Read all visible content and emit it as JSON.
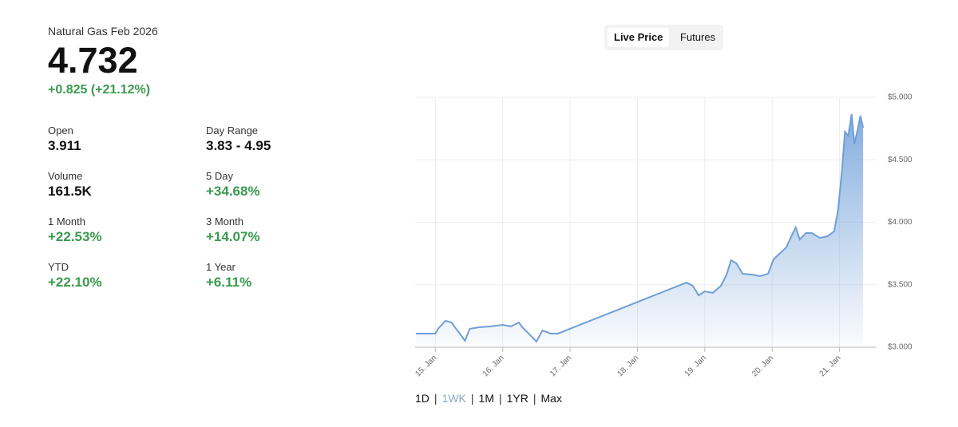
{
  "header": {
    "title": "Natural Gas Feb 2026",
    "price": "4.732",
    "change": "+0.825 (+21.12%)",
    "change_color": "#3a9a4f"
  },
  "stats": [
    {
      "label": "Open",
      "value": "3.911",
      "color": "#111111"
    },
    {
      "label": "Day Range",
      "value": "3.83 - 4.95",
      "color": "#111111"
    },
    {
      "label": "Volume",
      "value": "161.5K",
      "color": "#111111"
    },
    {
      "label": "5 Day",
      "value": "+34.68%",
      "color": "#3a9a4f"
    },
    {
      "label": "1 Month",
      "value": "+22.53%",
      "color": "#3a9a4f"
    },
    {
      "label": "3 Month",
      "value": "+14.07%",
      "color": "#3a9a4f"
    },
    {
      "label": "YTD",
      "value": "+22.10%",
      "color": "#3a9a4f"
    },
    {
      "label": "1 Year",
      "value": "+6.11%",
      "color": "#3a9a4f"
    }
  ],
  "tabs": {
    "items": [
      "Live Price",
      "Futures"
    ],
    "selected": 0
  },
  "ranges": {
    "items": [
      "1D",
      "1WK",
      "1M",
      "1YR",
      "Max"
    ],
    "selected": 1
  },
  "chart_data": {
    "type": "area",
    "color": "#6f9fd8",
    "grid": true,
    "x": [
      14.71,
      15.0,
      15.04,
      15.15,
      15.24,
      15.29,
      15.38,
      15.44,
      15.51,
      15.65,
      15.82,
      16.0,
      16.12,
      16.24,
      16.29,
      16.41,
      16.5,
      16.59,
      16.71,
      16.82,
      18.73,
      18.82,
      18.91,
      19.0,
      19.12,
      19.24,
      19.32,
      19.39,
      19.47,
      19.56,
      19.71,
      19.82,
      19.94,
      20.02,
      20.12,
      20.21,
      20.29,
      20.35,
      20.41,
      20.5,
      20.59,
      20.71,
      20.82,
      20.92,
      20.98,
      21.04,
      21.08,
      21.13,
      21.18,
      21.22,
      21.27,
      21.31,
      21.35
    ],
    "values": [
      3.109,
      3.109,
      3.147,
      3.211,
      3.198,
      3.16,
      3.096,
      3.051,
      3.147,
      3.16,
      3.166,
      3.179,
      3.166,
      3.198,
      3.16,
      3.096,
      3.045,
      3.134,
      3.109,
      3.109,
      3.518,
      3.492,
      3.415,
      3.447,
      3.435,
      3.492,
      3.575,
      3.696,
      3.671,
      3.588,
      3.581,
      3.569,
      3.588,
      3.703,
      3.754,
      3.799,
      3.895,
      3.958,
      3.863,
      3.914,
      3.914,
      3.875,
      3.888,
      3.927,
      4.105,
      4.438,
      4.725,
      4.693,
      4.866,
      4.629,
      4.744,
      4.853,
      4.757
    ],
    "xlim": [
      14.7,
      21.55
    ],
    "xticks": [
      {
        "value": 15,
        "label": "15. Jan"
      },
      {
        "value": 16,
        "label": "16. Jan"
      },
      {
        "value": 17,
        "label": "17. Jan"
      },
      {
        "value": 18,
        "label": "18. Jan"
      },
      {
        "value": 19,
        "label": "19. Jan"
      },
      {
        "value": 20,
        "label": "20. Jan"
      },
      {
        "value": 21,
        "label": "21. Jan"
      }
    ],
    "ylim": [
      3,
      5
    ],
    "yticks": [
      {
        "value": 3,
        "label": "$3.000"
      },
      {
        "value": 3.5,
        "label": "$3.500"
      },
      {
        "value": 4,
        "label": "$4.000"
      },
      {
        "value": 4.5,
        "label": "$4.500"
      },
      {
        "value": 5,
        "label": "$5.000"
      }
    ]
  }
}
